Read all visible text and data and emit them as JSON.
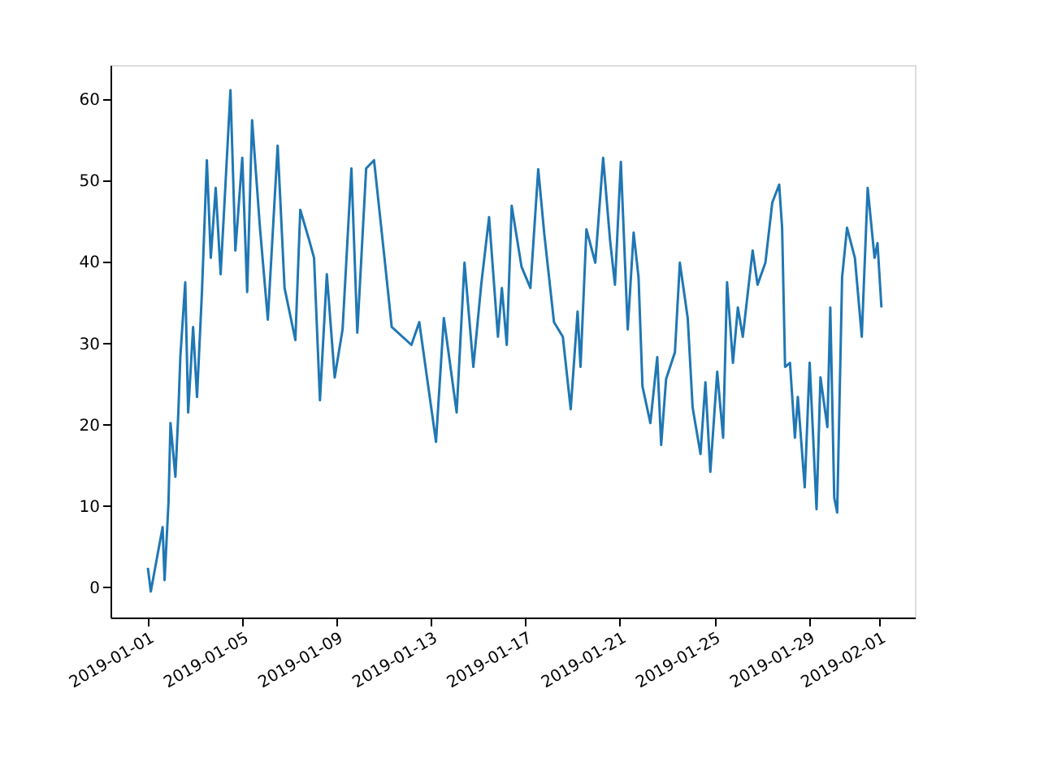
{
  "chart_data": {
    "type": "line",
    "grid": false,
    "line_style": "solid",
    "marker": "none",
    "xlim": [
      "2018-12-30T10:00",
      "2019-02-02T12:00"
    ],
    "xticks": [
      {
        "value": "2019-01-01",
        "label": "2019-01-01"
      },
      {
        "value": "2019-01-05",
        "label": "2019-01-05"
      },
      {
        "value": "2019-01-09",
        "label": "2019-01-09"
      },
      {
        "value": "2019-01-13",
        "label": "2019-01-13"
      },
      {
        "value": "2019-01-17",
        "label": "2019-01-17"
      },
      {
        "value": "2019-01-21",
        "label": "2019-01-21"
      },
      {
        "value": "2019-01-25",
        "label": "2019-01-25"
      },
      {
        "value": "2019-01-29",
        "label": "2019-01-29"
      },
      {
        "value": "2019-02-01",
        "label": "2019-02-01"
      }
    ],
    "ylim": [
      -3.7,
      64.2
    ],
    "yticks": [
      0,
      10,
      20,
      30,
      40,
      50,
      60
    ],
    "series": [
      {
        "color": "#1f77b4",
        "x": [
          "2019-01-01T00:00",
          "2019-01-01T03:00",
          "2019-01-01T15:00",
          "2019-01-01T17:00",
          "2019-01-01T21:00",
          "2019-01-01T23:00",
          "2019-01-02T04:00",
          "2019-01-02T07:00",
          "2019-01-02T09:00",
          "2019-01-02T14:00",
          "2019-01-02T17:00",
          "2019-01-02T22:00",
          "2019-01-03T02:00",
          "2019-01-03T07:00",
          "2019-01-03T12:00",
          "2019-01-03T16:00",
          "2019-01-03T21:00",
          "2019-01-04T02:00",
          "2019-01-04T07:00",
          "2019-01-04T12:00",
          "2019-01-04T17:00",
          "2019-01-05T00:00",
          "2019-01-05T05:00",
          "2019-01-05T10:00",
          "2019-01-05T18:00",
          "2019-01-06T02:00",
          "2019-01-06T12:00",
          "2019-01-06T19:00",
          "2019-01-07T06:00",
          "2019-01-07T11:00",
          "2019-01-07T20:00",
          "2019-01-08T01:00",
          "2019-01-08T07:00",
          "2019-01-08T14:00",
          "2019-01-08T22:00",
          "2019-01-09T06:00",
          "2019-01-09T15:00",
          "2019-01-09T21:00",
          "2019-01-10T06:00",
          "2019-01-10T14:00",
          "2019-01-11T00:00",
          "2019-01-11T08:00",
          "2019-01-12T04:00",
          "2019-01-12T12:00",
          "2019-01-13T05:00",
          "2019-01-13T13:00",
          "2019-01-14T02:00",
          "2019-01-14T10:00",
          "2019-01-14T19:00",
          "2019-01-15T03:00",
          "2019-01-15T11:00",
          "2019-01-15T20:00",
          "2019-01-16T00:00",
          "2019-01-16T05:00",
          "2019-01-16T10:00",
          "2019-01-16T20:00",
          "2019-01-17T05:00",
          "2019-01-17T13:00",
          "2019-01-17T19:00",
          "2019-01-18T05:00",
          "2019-01-18T14:00",
          "2019-01-18T22:00",
          "2019-01-19T05:00",
          "2019-01-19T08:00",
          "2019-01-19T14:00",
          "2019-01-19T23:00",
          "2019-01-20T07:00",
          "2019-01-20T14:00",
          "2019-01-20T19:00",
          "2019-01-21T01:00",
          "2019-01-21T08:00",
          "2019-01-21T14:00",
          "2019-01-21T19:00",
          "2019-01-21T23:00",
          "2019-01-22T07:00",
          "2019-01-22T14:00",
          "2019-01-22T18:00",
          "2019-01-22T23:00",
          "2019-01-23T08:00",
          "2019-01-23T13:00",
          "2019-01-23T21:00",
          "2019-01-24T02:00",
          "2019-01-24T10:00",
          "2019-01-24T15:00",
          "2019-01-24T20:00",
          "2019-01-25T03:00",
          "2019-01-25T09:00",
          "2019-01-25T13:00",
          "2019-01-25T19:00",
          "2019-01-26T00:00",
          "2019-01-26T05:00",
          "2019-01-26T15:00",
          "2019-01-26T20:00",
          "2019-01-27T04:00",
          "2019-01-27T11:00",
          "2019-01-27T18:00",
          "2019-01-27T21:00",
          "2019-01-28T00:00",
          "2019-01-28T05:00",
          "2019-01-28T10:00",
          "2019-01-28T13:00",
          "2019-01-28T20:00",
          "2019-01-29T01:00",
          "2019-01-29T08:00",
          "2019-01-29T12:00",
          "2019-01-29T19:00",
          "2019-01-29T22:00",
          "2019-01-30T02:00",
          "2019-01-30T05:00",
          "2019-01-30T10:00",
          "2019-01-30T15:00",
          "2019-01-30T23:00",
          "2019-01-31T06:00",
          "2019-01-31T12:00",
          "2019-01-31T19:00",
          "2019-01-31T22:00",
          "2019-02-01T02:00"
        ],
        "values": [
          2.4,
          -0.5,
          7.4,
          0.9,
          10.5,
          20.2,
          13.6,
          21.5,
          28.3,
          37.5,
          21.5,
          32,
          23.4,
          36.3,
          52.5,
          40.5,
          49.1,
          38.5,
          49.7,
          61.1,
          41.4,
          52.8,
          36.3,
          57.4,
          44.2,
          32.9,
          54.3,
          36.8,
          30.4,
          46.4,
          42.7,
          40.5,
          23,
          38.5,
          25.8,
          31.7,
          51.5,
          31.3,
          51.5,
          52.5,
          41.2,
          32,
          29.8,
          32.6,
          17.9,
          33.1,
          21.5,
          39.9,
          27.1,
          37.2,
          45.5,
          30.8,
          36.8,
          29.8,
          46.9,
          39.4,
          36.8,
          51.4,
          43.6,
          32.6,
          30.8,
          21.9,
          33.9,
          27.1,
          44,
          39.9,
          52.8,
          42.7,
          37.2,
          52.3,
          31.7,
          43.6,
          38.1,
          24.7,
          20.2,
          28.3,
          17.5,
          25.6,
          28.9,
          39.9,
          33.1,
          22.1,
          16.4,
          25.2,
          14.2,
          26.5,
          18.4,
          37.5,
          27.6,
          34.4,
          30.8,
          41.4,
          37.2,
          39.9,
          47.3,
          49.5,
          44.2,
          27.1,
          27.6,
          18.4,
          23.4,
          12.3,
          27.6,
          9.6,
          25.8,
          19.7,
          34.4,
          11,
          9.2,
          38.1,
          44.2,
          40.5,
          30.8,
          49.1,
          40.5,
          42.3,
          34.4
        ]
      }
    ]
  }
}
